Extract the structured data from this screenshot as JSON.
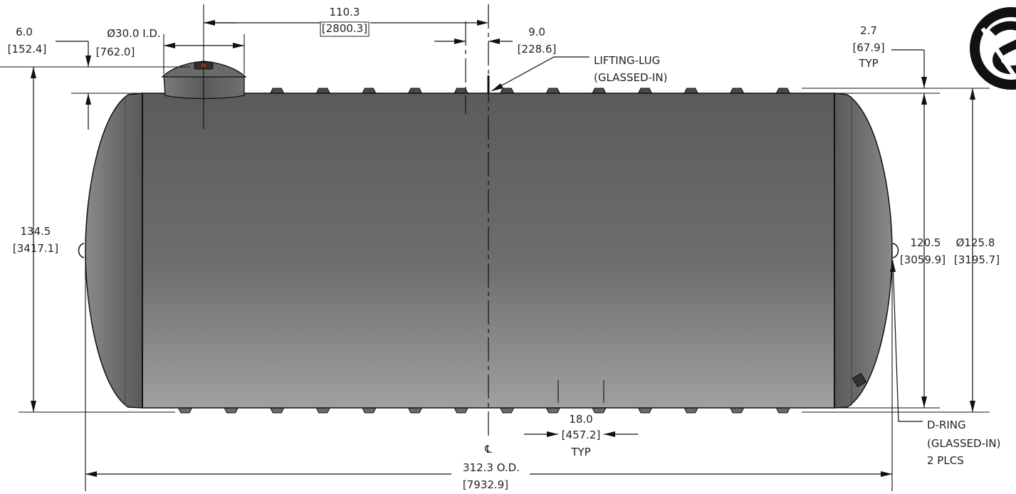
{
  "dimensions": {
    "manway_offset": {
      "value": "110.3",
      "metric": "[2800.3]"
    },
    "manway_height": {
      "value": "6.0",
      "metric": "[152.4]"
    },
    "manway_diameter": {
      "value": "Ø30.0 I.D.",
      "metric": "[762.0]"
    },
    "lug_offset": {
      "value": "9.0",
      "metric": "[228.6]"
    },
    "rib_height": {
      "value": "2.7",
      "metric": "[67.9]",
      "note": "TYP"
    },
    "overall_height": {
      "value": "134.5",
      "metric": "[3417.1]"
    },
    "inner_height": {
      "value": "120.5",
      "metric": "[3059.9]"
    },
    "outer_diameter": {
      "value": "Ø125.8",
      "metric": "[3195.7]"
    },
    "rib_spacing": {
      "value": "18.0",
      "metric": "[457.2]",
      "note": "TYP"
    },
    "overall_length": {
      "value": "312.3  O.D.",
      "metric": "[7932.9]"
    }
  },
  "callouts": {
    "lifting_lug": [
      "LIFTING-LUG",
      "(GLASSED-IN)"
    ],
    "d_ring": [
      "D-RING",
      "(GLASSED-IN)",
      "2 PLCS"
    ]
  },
  "centerline_symbol": "℄",
  "colors": {
    "tank_top": "#5d5d5d",
    "tank_bottom": "#9a9a9a",
    "end_cap": "#7a7a7a",
    "logo": "#111111"
  },
  "logo_icon": "company-logo-icon"
}
